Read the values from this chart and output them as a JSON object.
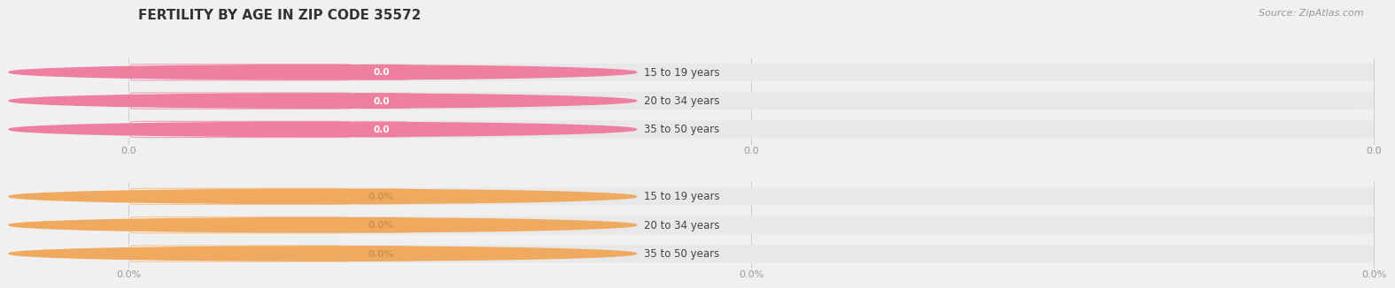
{
  "title": "FERTILITY BY AGE IN ZIP CODE 35572",
  "source": "Source: ZipAtlas.com",
  "top_group": {
    "labels": [
      "15 to 19 years",
      "20 to 34 years",
      "35 to 50 years"
    ],
    "values": [
      0.0,
      0.0,
      0.0
    ],
    "bar_color": "#f2a0b8",
    "dot_color": "#ee7fa0",
    "value_bg": "#f2a0b8",
    "value_color": "#ffffff",
    "axis_ticks": [
      "0.0",
      "0.0",
      "0.0"
    ]
  },
  "bottom_group": {
    "labels": [
      "15 to 19 years",
      "20 to 34 years",
      "35 to 50 years"
    ],
    "values": [
      0.0,
      0.0,
      0.0
    ],
    "bar_color": "#f5c896",
    "dot_color": "#f0aa60",
    "value_bg": "#f5c896",
    "value_color": "#d4904a",
    "axis_ticks": [
      "0.0%",
      "0.0%",
      "0.0%"
    ]
  },
  "bg_color": "#f0f0f0",
  "bar_bg_color": "#e8e8e8",
  "label_bg": "#f8f8f8",
  "title_fontsize": 11,
  "label_fontsize": 8.5,
  "value_fontsize": 7.5,
  "tick_fontsize": 8,
  "source_fontsize": 8
}
